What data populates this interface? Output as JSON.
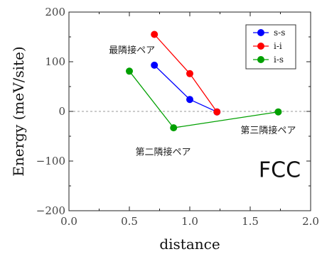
{
  "chart_data": {
    "type": "line",
    "title": "",
    "xlabel": "distance",
    "ylabel": "Energy (meV/site)",
    "xlim": [
      0,
      2
    ],
    "ylim": [
      -200,
      200
    ],
    "xticks": [
      "0.0",
      "0.5",
      "1.0",
      "1.5",
      "2.0"
    ],
    "xtick_values": [
      0,
      0.5,
      1.0,
      1.5,
      2.0
    ],
    "yticks": [
      "200",
      "100",
      "0",
      "−100",
      "−200"
    ],
    "ytick_values": [
      200,
      100,
      0,
      -100,
      -200
    ],
    "grid": false,
    "zero_line": "dashed",
    "legend_position": "top-right",
    "series": [
      {
        "name": "s-s",
        "color": "#0000ff",
        "points": [
          [
            0.707,
            93
          ],
          [
            1.0,
            24
          ],
          [
            1.225,
            -1
          ]
        ]
      },
      {
        "name": "i-i",
        "color": "#ff0000",
        "points": [
          [
            0.707,
            155
          ],
          [
            1.0,
            76
          ],
          [
            1.225,
            -1
          ]
        ]
      },
      {
        "name": "i-s",
        "color": "#00a000",
        "points": [
          [
            0.5,
            81
          ],
          [
            0.866,
            -33
          ],
          [
            1.732,
            -1
          ]
        ]
      }
    ],
    "annotations": [
      {
        "text": "最隣接ペア",
        "x": 0.33,
        "y": 117
      },
      {
        "text": "第二隣接ペア",
        "x": 0.55,
        "y": -88
      },
      {
        "text": "第三隣接ペア",
        "x": 1.42,
        "y": -44
      }
    ],
    "label": {
      "text": "FCC",
      "x": 1.57,
      "y": -132
    }
  }
}
